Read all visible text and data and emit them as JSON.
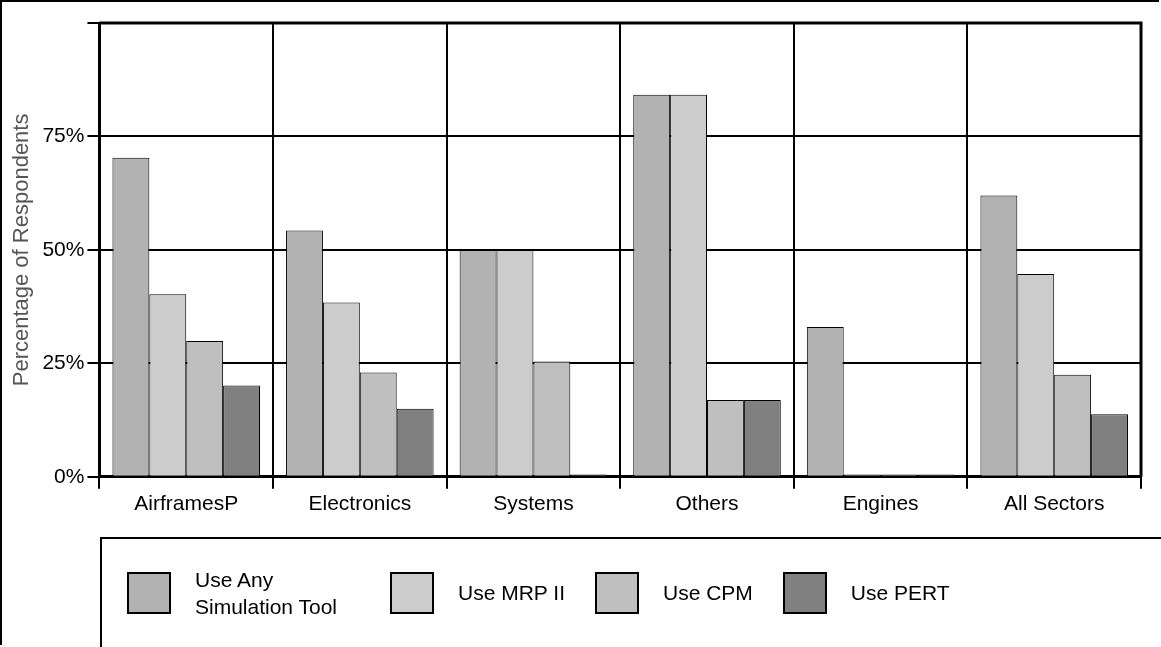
{
  "chart_data": {
    "type": "bar",
    "ylabel": "Percentage of Respondents",
    "categories": [
      "AirframesP",
      "Electronics",
      "Systems",
      "Others",
      "Engines",
      "All Sectors"
    ],
    "series": [
      {
        "name": "Use Any Simulation Tool",
        "color": "#b2b2b2",
        "values": [
          70.3,
          54.3,
          50,
          84.2,
          33,
          62
        ]
      },
      {
        "name": "Use MRP II",
        "color": "#cccccc",
        "values": [
          40.2,
          38.4,
          50,
          84.2,
          0.5,
          44.7
        ]
      },
      {
        "name": "Use CPM",
        "color": "#bfbfbf",
        "values": [
          29.9,
          23,
          25.4,
          16.9,
          0.5,
          22.5
        ]
      },
      {
        "name": "Use PERT",
        "color": "#808080",
        "values": [
          20.1,
          15,
          0.5,
          16.9,
          0.5,
          13.8
        ]
      }
    ],
    "ylim": [
      0,
      100
    ],
    "yticks": [
      {
        "value": 0,
        "label": "0%"
      },
      {
        "value": 25,
        "label": "25%"
      },
      {
        "value": 50,
        "label": "50%"
      },
      {
        "value": 75,
        "label": "75%"
      },
      {
        "value": 100,
        "label": null
      }
    ],
    "grid": true,
    "legend": "bottom"
  }
}
